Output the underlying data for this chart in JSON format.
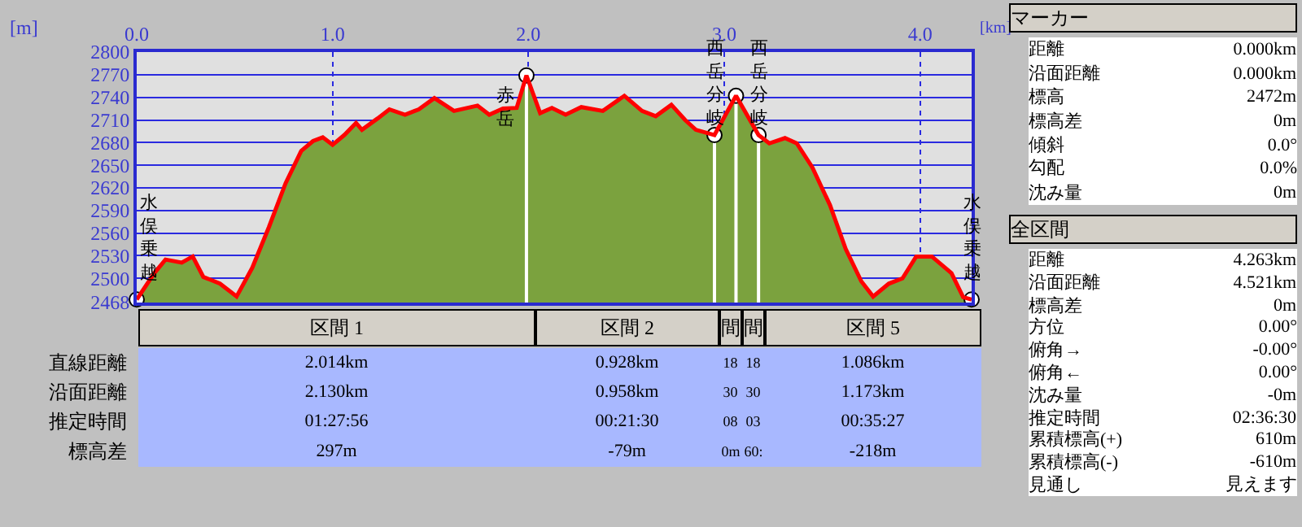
{
  "chart_data": {
    "type": "area",
    "xlabel": "[km]",
    "ylabel": "[m]",
    "xlim": [
      0,
      4.263
    ],
    "ylim": [
      2468,
      2800
    ],
    "xticks": [
      {
        "value": 0,
        "label": "0.0"
      },
      {
        "value": 1,
        "label": "1.0"
      },
      {
        "value": 2,
        "label": "2.0"
      },
      {
        "value": 3,
        "label": "3.0"
      },
      {
        "value": 4,
        "label": "4.0"
      }
    ],
    "yticks": [
      2468,
      2500,
      2530,
      2560,
      2590,
      2620,
      2650,
      2680,
      2710,
      2740,
      2770,
      2800
    ],
    "grid": true,
    "series": [
      {
        "color": "#7ba23e",
        "x": [
          0,
          0.09,
          0.147,
          0.23,
          0.286,
          0.34,
          0.425,
          0.51,
          0.59,
          0.675,
          0.76,
          0.84,
          0.9,
          0.95,
          1.0,
          1.06,
          1.12,
          1.15,
          1.23,
          1.29,
          1.37,
          1.44,
          1.52,
          1.62,
          1.74,
          1.8,
          1.87,
          1.94,
          1.99,
          2.06,
          2.12,
          2.19,
          2.27,
          2.38,
          2.49,
          2.58,
          2.65,
          2.73,
          2.8,
          2.855,
          2.95,
          3.06,
          3.175,
          3.23,
          3.31,
          3.37,
          3.45,
          3.54,
          3.62,
          3.7,
          3.76,
          3.84,
          3.91,
          3.98,
          4.06,
          4.16,
          4.22,
          4.263
        ],
        "values": [
          2472,
          2507,
          2525,
          2521,
          2529,
          2502,
          2493,
          2476,
          2514,
          2568,
          2626,
          2669,
          2682,
          2687,
          2677,
          2690,
          2706,
          2697,
          2712,
          2724,
          2717,
          2724,
          2739,
          2722,
          2729,
          2717,
          2725,
          2726,
          2769,
          2719,
          2726,
          2717,
          2727,
          2722,
          2742,
          2722,
          2715,
          2730,
          2710,
          2697,
          2690,
          2742,
          2690,
          2679,
          2686,
          2679,
          2647,
          2597,
          2539,
          2496,
          2476,
          2493,
          2500,
          2529,
          2529,
          2507,
          2475,
          2472
        ]
      },
      {
        "type": "line",
        "color": "#ff0000",
        "x": [
          0,
          0.09,
          0.147,
          0.23,
          0.286,
          0.34,
          0.425,
          0.51,
          0.59,
          0.675,
          0.76,
          0.84,
          0.9,
          0.95,
          1.0,
          1.06,
          1.12,
          1.15,
          1.23,
          1.29,
          1.37,
          1.44,
          1.52,
          1.62,
          1.74,
          1.8,
          1.87,
          1.94,
          1.99,
          2.06,
          2.12,
          2.19,
          2.27,
          2.38,
          2.49,
          2.58,
          2.65,
          2.73,
          2.8,
          2.855,
          2.95,
          3.06,
          3.175,
          3.23,
          3.31,
          3.37,
          3.45,
          3.54,
          3.62,
          3.7,
          3.76,
          3.84,
          3.91,
          3.98,
          4.06,
          4.16,
          4.22,
          4.263
        ],
        "values": [
          2472,
          2507,
          2525,
          2521,
          2529,
          2502,
          2493,
          2476,
          2514,
          2568,
          2626,
          2669,
          2682,
          2687,
          2677,
          2690,
          2706,
          2697,
          2712,
          2724,
          2717,
          2724,
          2739,
          2722,
          2729,
          2717,
          2725,
          2726,
          2769,
          2719,
          2726,
          2717,
          2727,
          2722,
          2742,
          2722,
          2715,
          2730,
          2710,
          2697,
          2690,
          2742,
          2690,
          2679,
          2686,
          2679,
          2647,
          2597,
          2539,
          2496,
          2476,
          2493,
          2500,
          2529,
          2529,
          2507,
          2475,
          2472
        ]
      },
      {
        "type": "lollipop",
        "color": "#ffffff",
        "marker": "circle",
        "x": [
          0,
          1.99,
          2.95,
          3.06,
          3.175,
          4.263
        ],
        "values": [
          2472,
          2769,
          2690,
          2742,
          2690,
          2472
        ]
      }
    ],
    "annotations": [
      {
        "text": "水俣乗越",
        "x": 0,
        "y": 2472
      },
      {
        "text": "赤岳",
        "x": 1.99,
        "y": 2769
      },
      {
        "text": "西岳分岐",
        "x": 2.95,
        "y": 2690
      },
      {
        "text": "西岳分岐",
        "x": 3.175,
        "y": 2690
      },
      {
        "text": "水俣乗越",
        "x": 4.263,
        "y": 2472
      },
      "区間 1",
      "区間 2",
      "間",
      "間",
      "区間 5",
      "直線距離",
      "沿面距離",
      "推定時間",
      "標高差",
      "2.014km",
      "0.928km",
      "18",
      "18",
      "1.086km",
      "2.130km",
      "0.958km",
      "30",
      "30",
      "1.173km",
      "01:27:56",
      "00:21:30",
      "08",
      "03",
      "00:35:27",
      "297m",
      "-79m",
      "0m",
      "60:",
      "-218m",
      "マーカー",
      "距離",
      "0.000km",
      "沿面距離",
      "0.000km",
      "標高",
      "2472m",
      "標高差",
      "0m",
      "傾斜",
      "0.0°",
      "勾配",
      "0.0%",
      "沈み量",
      "0m",
      "全区間",
      "距離",
      "4.263km",
      "沿面距離",
      "4.521km",
      "標高差",
      "0m",
      "方位",
      "0.00°",
      "俯角→",
      "-0.00°",
      "俯角←",
      "0.00°",
      "沈み量",
      "-0m",
      "推定時間",
      "02:36:30",
      "累積標高(+)",
      "610m",
      "累積標高(-)",
      "-610m",
      "見通し",
      "見えます"
    ]
  }
}
